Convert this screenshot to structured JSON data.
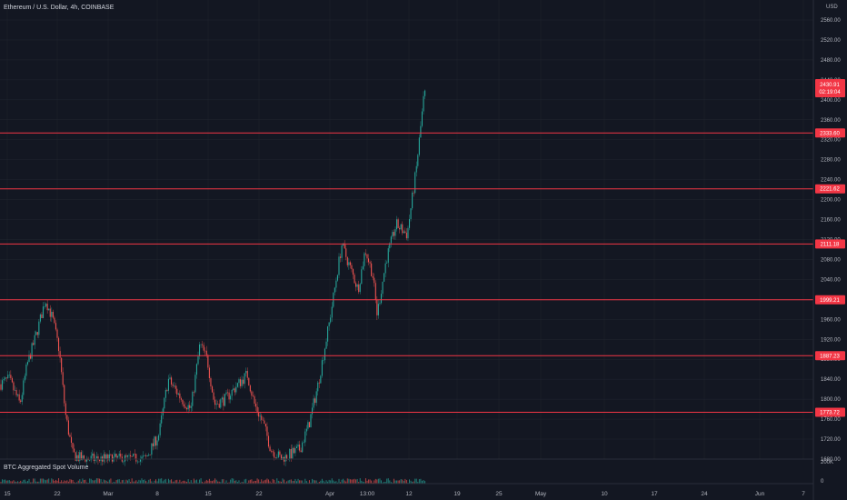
{
  "header": {
    "symbol_title": "Ethereum / U.S. Dollar, 4h, COINBASE",
    "currency": "USD"
  },
  "price_axis": {
    "ticks": [
      "2560.00",
      "2520.00",
      "2480.00",
      "2440.00",
      "2400.00",
      "2360.00",
      "2320.00",
      "2280.00",
      "2240.00",
      "2200.00",
      "2160.00",
      "2120.00",
      "2080.00",
      "2040.00",
      "2000.00",
      "1960.00",
      "1920.00",
      "1880.00",
      "1840.00",
      "1800.00",
      "1760.00",
      "1720.00",
      "1680.00"
    ]
  },
  "current_price": {
    "value": "2430.91",
    "countdown": "02:19:04"
  },
  "levels": [
    {
      "price": 2333.6,
      "label": "2333.60"
    },
    {
      "price": 2221.62,
      "label": "2221.62"
    },
    {
      "price": 2111.18,
      "label": "2111.18"
    },
    {
      "price": 1999.21,
      "label": "1999.21"
    },
    {
      "price": 1887.23,
      "label": "1887.23"
    },
    {
      "price": 1773.72,
      "label": "1773.72"
    }
  ],
  "time_axis": {
    "ticks": [
      "15",
      "22",
      "Mar",
      "8",
      "15",
      "22",
      "Apr",
      "13:00",
      "12",
      "19",
      "25",
      "May",
      "10",
      "17",
      "24",
      "Jun",
      "7"
    ]
  },
  "volume": {
    "title": "BTC Aggregated Spot Volume",
    "axis_top": "200K",
    "axis_bottom": "0"
  },
  "colors": {
    "background": "#131722",
    "up": "#26a69a",
    "down": "#ef5350",
    "level_line": "#f23645",
    "grid": "#2a2e39",
    "text": "#b2b5be"
  },
  "chart_data": {
    "type": "candlestick",
    "title": "Ethereum / U.S. Dollar, 4h, COINBASE",
    "ylim": [
      1680,
      2580
    ],
    "close_anchors": [
      {
        "x": 0,
        "y": 1830
      },
      {
        "x": 10,
        "y": 1840
      },
      {
        "x": 22,
        "y": 1790
      },
      {
        "x": 30,
        "y": 1870
      },
      {
        "x": 40,
        "y": 1930
      },
      {
        "x": 50,
        "y": 2000
      },
      {
        "x": 58,
        "y": 1960
      },
      {
        "x": 65,
        "y": 1900
      },
      {
        "x": 72,
        "y": 1770
      },
      {
        "x": 80,
        "y": 1690
      },
      {
        "x": 90,
        "y": 1680
      },
      {
        "x": 130,
        "y": 1680
      },
      {
        "x": 160,
        "y": 1680
      },
      {
        "x": 175,
        "y": 1730
      },
      {
        "x": 185,
        "y": 1840
      },
      {
        "x": 200,
        "y": 1800
      },
      {
        "x": 210,
        "y": 1780
      },
      {
        "x": 220,
        "y": 1910
      },
      {
        "x": 228,
        "y": 1880
      },
      {
        "x": 236,
        "y": 1790
      },
      {
        "x": 248,
        "y": 1800
      },
      {
        "x": 262,
        "y": 1830
      },
      {
        "x": 272,
        "y": 1850
      },
      {
        "x": 280,
        "y": 1790
      },
      {
        "x": 290,
        "y": 1750
      },
      {
        "x": 298,
        "y": 1700
      },
      {
        "x": 310,
        "y": 1680
      },
      {
        "x": 330,
        "y": 1700
      },
      {
        "x": 340,
        "y": 1750
      },
      {
        "x": 350,
        "y": 1830
      },
      {
        "x": 362,
        "y": 1950
      },
      {
        "x": 376,
        "y": 2110
      },
      {
        "x": 386,
        "y": 2060
      },
      {
        "x": 394,
        "y": 2020
      },
      {
        "x": 402,
        "y": 2100
      },
      {
        "x": 410,
        "y": 2050
      },
      {
        "x": 415,
        "y": 1970
      },
      {
        "x": 425,
        "y": 2080
      },
      {
        "x": 436,
        "y": 2150
      },
      {
        "x": 448,
        "y": 2130
      },
      {
        "x": 458,
        "y": 2260
      },
      {
        "x": 466,
        "y": 2400
      },
      {
        "x": 470,
        "y": 2430
      }
    ],
    "series": [
      {
        "name": "Ethereum / U.S. Dollar",
        "last": 2430.91
      }
    ]
  }
}
